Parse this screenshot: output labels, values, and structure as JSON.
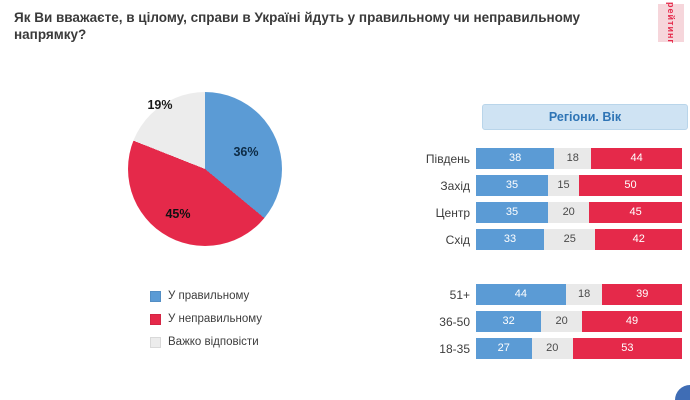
{
  "title": "Як Ви вважаєте, в цілому, справи в Україні йдуть у правильному чи неправильному напрямку?",
  "logo_text": "рейтинг",
  "colors": {
    "blue": "#5B9BD5",
    "red": "#E5294A",
    "gray": "#ECECEC",
    "header_bg": "#CFE3F3",
    "header_text": "#2E74B5"
  },
  "legend": {
    "items": [
      {
        "label": "У правильному",
        "color": "#5B9BD5"
      },
      {
        "label": "У неправильному",
        "color": "#E5294A"
      },
      {
        "label": "Важко відповісти",
        "color": "#ECECEC"
      }
    ]
  },
  "chart_data": [
    {
      "type": "pie",
      "labels": [
        "У правильному",
        "У неправильному",
        "Важко відповісти"
      ],
      "values": [
        36,
        45,
        19
      ],
      "values_display": [
        "36%",
        "45%",
        "19%"
      ],
      "colors": [
        "#5B9BD5",
        "#E5294A",
        "#ECECEC"
      ],
      "unit": "%"
    },
    {
      "type": "bar",
      "title": "Регіони. Вік",
      "orientation": "horizontal-stacked",
      "categories": [
        "Південь",
        "Захід",
        "Центр",
        "Схід",
        "51+",
        "36-50",
        "18-35"
      ],
      "gap_after_index": 3,
      "series": [
        {
          "name": "У правильному",
          "color": "#5B9BD5",
          "text_color": "#ffffff",
          "values": [
            38,
            35,
            35,
            33,
            44,
            32,
            27
          ]
        },
        {
          "name": "Важко відповісти",
          "color": "#E9E9E9",
          "text_color": "#4a4a4a",
          "values": [
            18,
            15,
            20,
            25,
            18,
            20,
            20
          ]
        },
        {
          "name": "У неправильному",
          "color": "#E5294A",
          "text_color": "#ffffff",
          "values": [
            44,
            50,
            45,
            42,
            39,
            49,
            53
          ]
        }
      ],
      "xlim": [
        0,
        100
      ],
      "unit": "%"
    }
  ]
}
